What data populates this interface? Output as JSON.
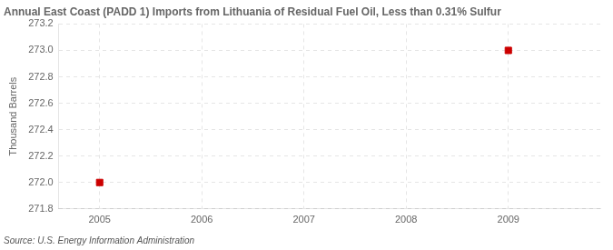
{
  "chart_data": {
    "type": "scatter",
    "title": "Annual East Coast (PADD 1) Imports from Lithuania of Residual Fuel Oil, Less than 0.31% Sulfur",
    "y_label": "Thousand Barrels",
    "annotations": [
      "Source: U.S. Energy Information Administration"
    ],
    "x": [
      2005,
      2009
    ],
    "values": [
      272.0,
      273.0
    ],
    "color": "#cc0000",
    "marker": "square",
    "xlim": [
      2004.6,
      2009.9
    ],
    "ylim": [
      271.8,
      273.2
    ],
    "xticks": [
      2005,
      2006,
      2007,
      2008,
      2009
    ],
    "yticks": [
      271.8,
      {
        "value": 272.0,
        "label": "272.0"
      },
      272.2,
      272.4,
      272.6,
      272.8,
      {
        "value": 273.0,
        "label": "273.0"
      },
      273.2
    ],
    "grid": true
  }
}
